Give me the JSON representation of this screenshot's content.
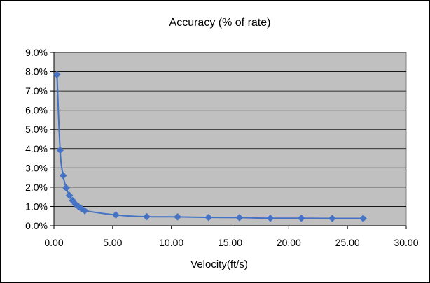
{
  "chart_data": {
    "type": "scatter",
    "title": "Accuracy (% of rate)",
    "xlabel": "Velocity(ft/s)",
    "ylabel": "",
    "xlim": [
      0,
      30
    ],
    "ylim": [
      0,
      9
    ],
    "x_ticks": [
      0,
      5,
      10,
      15,
      20,
      25,
      30
    ],
    "x_tick_labels": [
      "0.00",
      "5.00",
      "10.00",
      "15.00",
      "20.00",
      "25.00",
      "30.00"
    ],
    "y_ticks": [
      0,
      1,
      2,
      3,
      4,
      5,
      6,
      7,
      8,
      9
    ],
    "y_tick_labels": [
      "0.0%",
      "1.0%",
      "2.0%",
      "3.0%",
      "4.0%",
      "5.0%",
      "6.0%",
      "7.0%",
      "8.0%",
      "9.0%"
    ],
    "grid": "horizontal",
    "legend": "none",
    "series": [
      {
        "x": [
          0.26,
          0.53,
          0.79,
          1.05,
          1.32,
          1.58,
          1.84,
          2.11,
          2.37,
          2.63,
          5.27,
          7.9,
          10.53,
          13.17,
          15.8,
          18.43,
          21.07,
          23.7,
          26.33
        ],
        "y": [
          7.85,
          3.92,
          2.6,
          1.96,
          1.57,
          1.31,
          1.12,
          0.98,
          0.87,
          0.78,
          0.56,
          0.47,
          0.46,
          0.43,
          0.42,
          0.39,
          0.39,
          0.38,
          0.38
        ]
      }
    ],
    "colors": {
      "plot_background": "#c0c0c0",
      "series": "#4472c4",
      "grid": "#000000"
    }
  }
}
